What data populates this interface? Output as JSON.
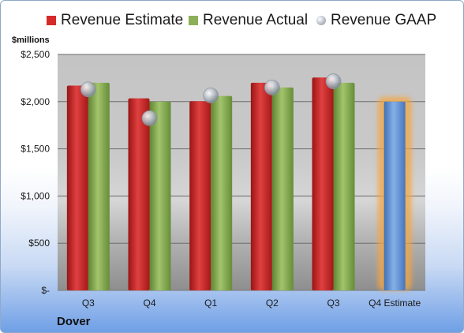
{
  "unit_label": "$millions",
  "company": "Dover",
  "colors": {
    "estimate": "#d42a2a",
    "actual": "#8cb05a",
    "gaap": "#b8bec8",
    "forecast": "#6a9ad8",
    "forecast_glow": "#f4a640"
  },
  "chart_data": {
    "type": "bar",
    "categories": [
      "Q3",
      "Q4",
      "Q1",
      "Q2",
      "Q3",
      "Q4 Estimate"
    ],
    "series": [
      {
        "name": "Revenue Estimate",
        "values": [
          2170,
          2035,
          2005,
          2200,
          2255,
          2000
        ]
      },
      {
        "name": "Revenue Actual",
        "values": [
          2200,
          2000,
          2060,
          2150,
          2200,
          null
        ]
      },
      {
        "name": "Revenue GAAP",
        "values": [
          2130,
          1825,
          2065,
          2150,
          2215,
          null
        ]
      }
    ],
    "yticks": [
      0,
      500,
      1000,
      1500,
      2000,
      2500
    ],
    "ytick_labels": [
      "$-",
      "$500",
      "$1,000",
      "$1,500",
      "$2,000",
      "$2,500"
    ],
    "ylim": [
      0,
      2500
    ],
    "grid": true,
    "legend": "top"
  }
}
